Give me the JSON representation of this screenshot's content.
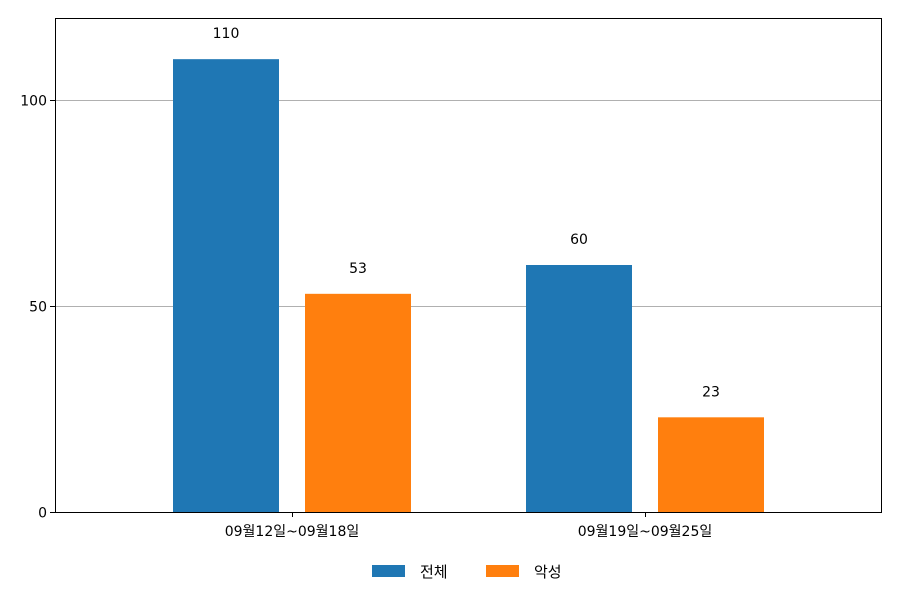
{
  "chart_data": {
    "type": "bar",
    "categories": [
      "09월12일~09월18일",
      "09월19일~09월25일"
    ],
    "series": [
      {
        "name": "전체",
        "values": [
          110,
          60
        ],
        "color": "#1f77b4"
      },
      {
        "name": "악성",
        "values": [
          53,
          23
        ],
        "color": "#ff7f0e"
      }
    ],
    "yticks": [
      0,
      50,
      100
    ],
    "ylim": [
      0,
      120
    ],
    "grid": "horizontal",
    "legend_position": "bottom-center",
    "data_labels": true
  }
}
